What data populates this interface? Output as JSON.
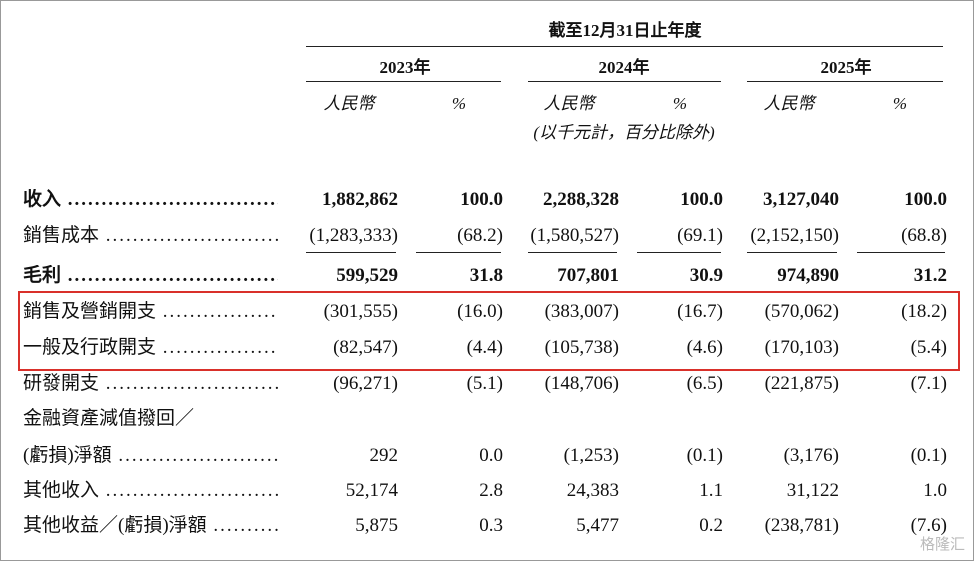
{
  "header": {
    "period": "截至12月31日止年度",
    "years": [
      "2023年",
      "2024年",
      "2025年"
    ],
    "currency": "人民幣",
    "percent": "%",
    "unit_note": "(以千元計，百分比除外)"
  },
  "table": {
    "rows": [
      {
        "label": "收入",
        "bold": true,
        "cells": [
          "1,882,862",
          "100.0",
          "2,288,328",
          "100.0",
          "3,127,040",
          "100.0"
        ]
      },
      {
        "label": "銷售成本",
        "underline": true,
        "cells": [
          "(1,283,333)",
          "(68.2)",
          "(1,580,527)",
          "(69.1)",
          "(2,152,150)",
          "(68.8)"
        ]
      },
      {
        "label": "毛利",
        "bold": true,
        "cells": [
          "599,529",
          "31.8",
          "707,801",
          "30.9",
          "974,890",
          "31.2"
        ]
      },
      {
        "label": "銷售及營銷開支",
        "cells": [
          "(301,555)",
          "(16.0)",
          "(383,007)",
          "(16.7)",
          "(570,062)",
          "(18.2)"
        ]
      },
      {
        "label": "一般及行政開支",
        "cells": [
          "(82,547)",
          "(4.4)",
          "(105,738)",
          "(4.6)",
          "(170,103)",
          "(5.4)"
        ]
      },
      {
        "label": "研發開支",
        "cells": [
          "(96,271)",
          "(5.1)",
          "(148,706)",
          "(6.5)",
          "(221,875)",
          "(7.1)"
        ]
      },
      {
        "label": "金融資產減值撥回／",
        "cells": []
      },
      {
        "label": "(虧損)淨額",
        "cells": [
          "292",
          "0.0",
          "(1,253)",
          "(0.1)",
          "(3,176)",
          "(0.1)"
        ]
      },
      {
        "label": "其他收入",
        "cells": [
          "52,174",
          "2.8",
          "24,383",
          "1.1",
          "31,122",
          "1.0"
        ]
      },
      {
        "label": "其他收益／(虧損)淨額",
        "cells": [
          "5,875",
          "0.3",
          "5,477",
          "0.2",
          "(238,781)",
          "(7.6)"
        ]
      }
    ]
  },
  "watermark": "格隆汇"
}
